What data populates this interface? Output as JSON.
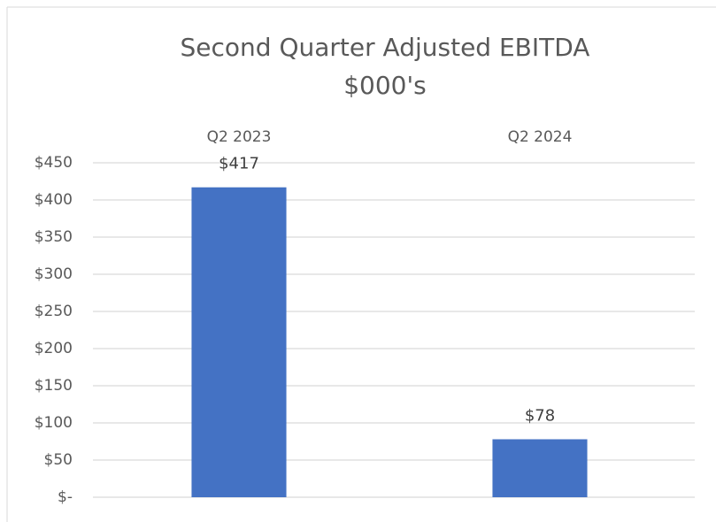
{
  "chart_data": {
    "type": "bar",
    "title": "Second Quarter Adjusted EBITDA",
    "subtitle": "$000's",
    "categories": [
      "Q2 2023",
      "Q2 2024"
    ],
    "values": [
      417,
      78
    ],
    "value_labels": [
      "$417",
      "$78"
    ],
    "color": "#4472c4",
    "ylim": [
      0,
      450
    ],
    "yticks": [
      {
        "value": 0,
        "label": "$-"
      },
      {
        "value": 50,
        "label": "$50"
      },
      {
        "value": 100,
        "label": "$100"
      },
      {
        "value": 150,
        "label": "$150"
      },
      {
        "value": 200,
        "label": "$200"
      },
      {
        "value": 250,
        "label": "$250"
      },
      {
        "value": 300,
        "label": "$300"
      },
      {
        "value": 350,
        "label": "$350"
      },
      {
        "value": 400,
        "label": "$400"
      },
      {
        "value": 450,
        "label": "$450"
      }
    ],
    "grid": true
  }
}
